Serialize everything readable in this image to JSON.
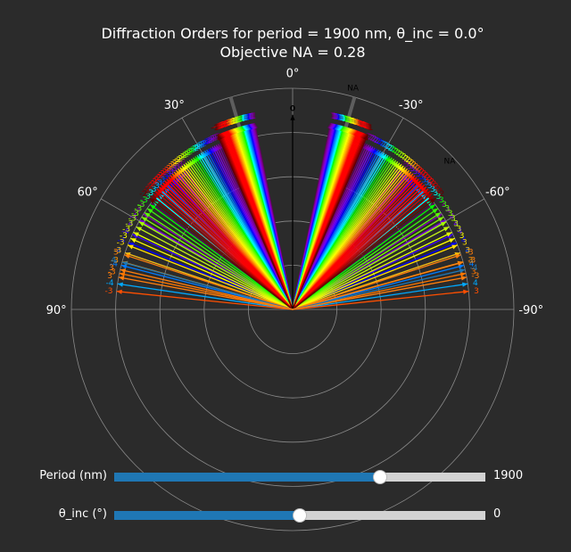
{
  "title": {
    "line1": "Diffraction Orders for period = 1900 nm, θ_inc = 0.0°",
    "line2": "Objective NA = 0.28"
  },
  "angle_ticks": [
    {
      "label": "0°",
      "deg": 0
    },
    {
      "label": "30°",
      "deg": 30
    },
    {
      "label": "60°",
      "deg": 60
    },
    {
      "label": "90°",
      "deg": 90
    },
    {
      "label": "-30°",
      "deg": -30
    },
    {
      "label": "-60°",
      "deg": -60
    },
    {
      "label": "-90°",
      "deg": -90
    }
  ],
  "na_label": "NA",
  "zero_order_label": "0",
  "sliders": [
    {
      "name": "period",
      "label": "Period (nm)",
      "value": "1900",
      "fraction": 0.717
    },
    {
      "name": "theta",
      "label": "θ_inc (°)",
      "value": "0",
      "fraction": 0.5
    }
  ],
  "chart_data": {
    "type": "polar",
    "theta_zero": "top",
    "theta_direction": "positive to the left",
    "theta_range": [
      -90,
      90
    ],
    "radial_grid_rings": 5,
    "period_nm": 1900,
    "theta_inc_deg": 0.0,
    "objective_na": 0.28,
    "na_half_angle_deg": 16.26,
    "wavelength_range_nm": [
      380,
      750
    ],
    "orders": [
      -4,
      -3,
      -2,
      -1,
      0,
      1,
      2,
      3,
      4
    ],
    "order_labels_shown": [
      "1",
      "2",
      "3",
      "4",
      "-1",
      "-2",
      "-3",
      "-4"
    ],
    "order_color_labels": [
      {
        "order": "3",
        "color": "#ff7f0e"
      },
      {
        "order": "4",
        "color": "#1f77b4"
      },
      {
        "order": "-3",
        "color": "#ff7f0e"
      },
      {
        "order": "-4",
        "color": "#1f77b4"
      }
    ],
    "arrow_length_orders": [
      {
        "order": 0,
        "r": 0.88
      },
      {
        "order": 1,
        "r": 0.86
      },
      {
        "order": 2,
        "r": 0.82
      },
      {
        "order": 3,
        "r": 0.8
      },
      {
        "order": 4,
        "r": 0.8
      }
    ]
  }
}
